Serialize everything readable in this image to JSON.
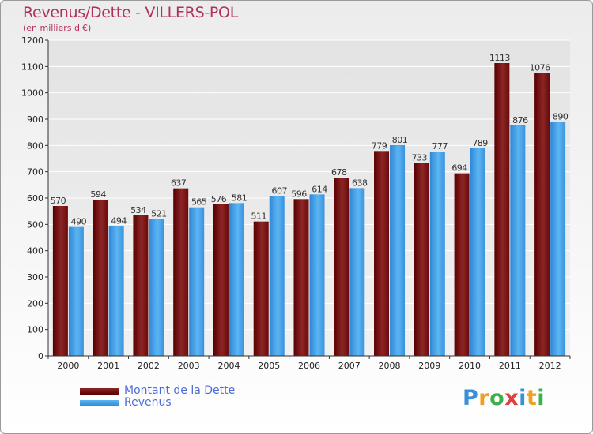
{
  "chart_data": {
    "type": "bar",
    "title": "Revenus/Dette - VILLERS-POL",
    "subtitle": "(en milliers d'€)",
    "xlabel": "",
    "ylabel": "",
    "ylim": [
      0,
      1200
    ],
    "yticks": [
      0,
      100,
      200,
      300,
      400,
      500,
      600,
      700,
      800,
      900,
      1000,
      1100,
      1200
    ],
    "grid": true,
    "categories": [
      "2000",
      "2001",
      "2002",
      "2003",
      "2004",
      "2005",
      "2006",
      "2007",
      "2008",
      "2009",
      "2010",
      "2011",
      "2012"
    ],
    "series": [
      {
        "name": "Montant de la Dette",
        "color": "#7a1010",
        "values": [
          570,
          594,
          534,
          637,
          576,
          511,
          596,
          678,
          779,
          733,
          694,
          1113,
          1076
        ]
      },
      {
        "name": "Revenus",
        "color": "#4aa6ec",
        "values": [
          490,
          494,
          521,
          565,
          581,
          607,
          614,
          638,
          801,
          777,
          789,
          876,
          890
        ]
      }
    ],
    "legend_position": "bottom-left"
  },
  "logo": {
    "letters": [
      "P",
      "r",
      "o",
      "x",
      "i",
      "t",
      "i"
    ],
    "colors": [
      "#3a8fd8",
      "#f0a020",
      "#3cb04a",
      "#e04040",
      "#3a8fd8",
      "#f0a020",
      "#3cb04a"
    ]
  }
}
